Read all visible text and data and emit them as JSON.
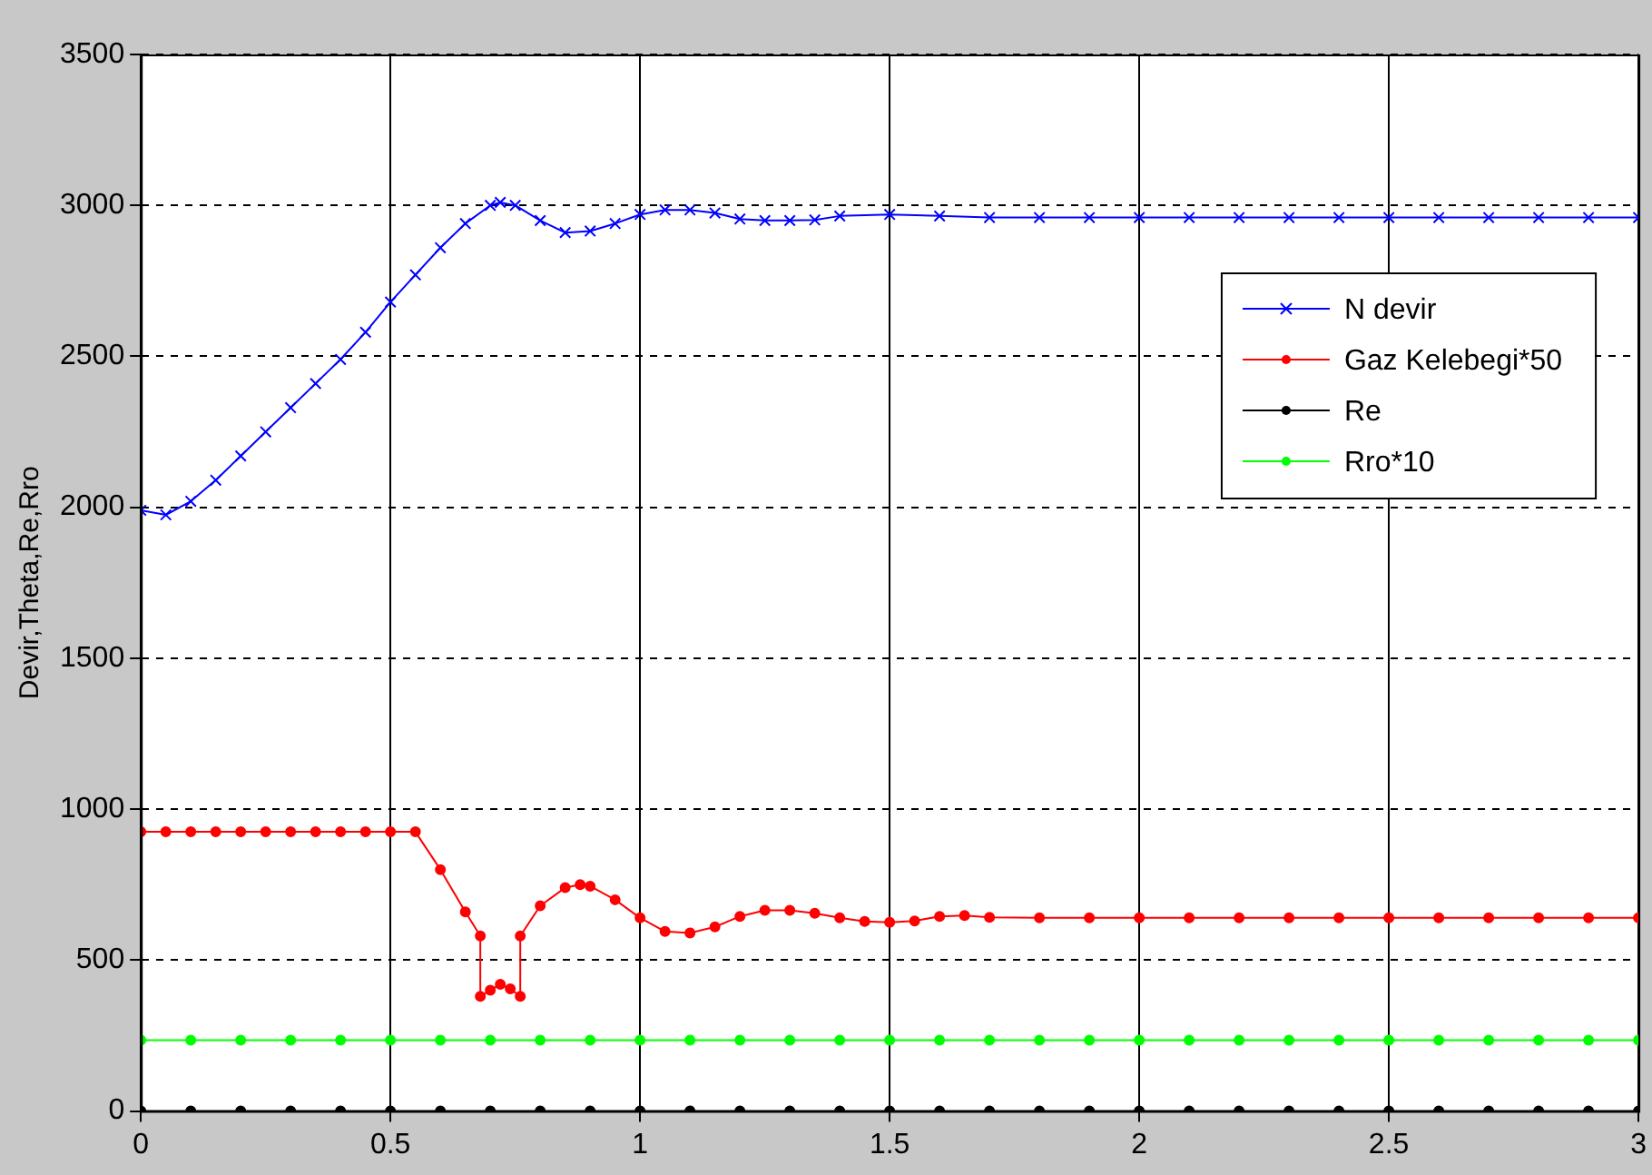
{
  "chart_data": {
    "type": "line",
    "ylabel": "Devir,Theta,Re,Rro",
    "xlim": [
      0,
      3
    ],
    "xticks": [
      0,
      0.5,
      1,
      1.5,
      2,
      2.5,
      3
    ],
    "ylim": [
      0,
      3500
    ],
    "yticks": [
      0,
      500,
      1000,
      1500,
      2000,
      2500,
      3000,
      3500
    ],
    "grid": true,
    "legend": "top right",
    "line_style": "solid",
    "series": [
      {
        "name": "N devir",
        "color": "#0000ff",
        "marker": "cross",
        "x": [
          0,
          0.05,
          0.1,
          0.15,
          0.2,
          0.25,
          0.3,
          0.35,
          0.4,
          0.45,
          0.5,
          0.55,
          0.6,
          0.65,
          0.7,
          0.72,
          0.75,
          0.8,
          0.85,
          0.9,
          0.95,
          1.0,
          1.05,
          1.1,
          1.15,
          1.2,
          1.25,
          1.3,
          1.35,
          1.4,
          1.5,
          1.6,
          1.7,
          1.8,
          1.9,
          2.0,
          2.1,
          2.2,
          2.3,
          2.4,
          2.5,
          2.6,
          2.7,
          2.8,
          2.9,
          3.0
        ],
        "values": [
          1990,
          1975,
          2020,
          2090,
          2170,
          2250,
          2330,
          2410,
          2490,
          2580,
          2680,
          2770,
          2860,
          2940,
          3000,
          3010,
          3000,
          2950,
          2910,
          2915,
          2940,
          2970,
          2985,
          2985,
          2975,
          2955,
          2950,
          2950,
          2952,
          2965,
          2970,
          2965,
          2960,
          2960,
          2960,
          2960,
          2960,
          2960,
          2960,
          2960,
          2960,
          2960,
          2960,
          2960,
          2960,
          2960
        ]
      },
      {
        "name": "Gaz Kelebegi*50",
        "color": "#ff0000",
        "marker": "circle",
        "x": [
          0,
          0.05,
          0.1,
          0.15,
          0.2,
          0.25,
          0.3,
          0.35,
          0.4,
          0.45,
          0.5,
          0.55,
          0.6,
          0.65,
          0.68,
          0.68,
          0.7,
          0.72,
          0.74,
          0.76,
          0.76,
          0.8,
          0.85,
          0.88,
          0.9,
          0.95,
          1.0,
          1.05,
          1.1,
          1.15,
          1.2,
          1.25,
          1.3,
          1.35,
          1.4,
          1.45,
          1.5,
          1.55,
          1.6,
          1.65,
          1.7,
          1.8,
          1.9,
          2.0,
          2.1,
          2.2,
          2.3,
          2.4,
          2.5,
          2.6,
          2.7,
          2.8,
          2.9,
          3.0
        ],
        "values": [
          925,
          925,
          925,
          925,
          925,
          925,
          925,
          925,
          925,
          925,
          925,
          925,
          800,
          660,
          580,
          380,
          400,
          420,
          405,
          380,
          580,
          680,
          740,
          750,
          745,
          700,
          640,
          595,
          590,
          610,
          645,
          665,
          665,
          655,
          640,
          628,
          625,
          630,
          645,
          648,
          642,
          640,
          640,
          640,
          640,
          640,
          640,
          640,
          640,
          640,
          640,
          640,
          640,
          640
        ]
      },
      {
        "name": "Re",
        "color": "#000000",
        "marker": "circle",
        "x": [
          0,
          0.1,
          0.2,
          0.3,
          0.4,
          0.5,
          0.6,
          0.7,
          0.8,
          0.9,
          1.0,
          1.1,
          1.2,
          1.3,
          1.4,
          1.5,
          1.6,
          1.7,
          1.8,
          1.9,
          2.0,
          2.1,
          2.2,
          2.3,
          2.4,
          2.5,
          2.6,
          2.7,
          2.8,
          2.9,
          3.0
        ],
        "values": [
          0,
          0,
          0,
          0,
          0,
          0,
          0,
          0,
          0,
          0,
          0,
          0,
          0,
          0,
          0,
          0,
          0,
          0,
          0,
          0,
          0,
          0,
          0,
          0,
          0,
          0,
          0,
          0,
          0,
          0,
          0
        ]
      },
      {
        "name": "Rro*10",
        "color": "#00ff00",
        "marker": "circle",
        "x": [
          0,
          0.1,
          0.2,
          0.3,
          0.4,
          0.5,
          0.6,
          0.7,
          0.8,
          0.9,
          1.0,
          1.1,
          1.2,
          1.3,
          1.4,
          1.5,
          1.6,
          1.7,
          1.8,
          1.9,
          2.0,
          2.1,
          2.2,
          2.3,
          2.4,
          2.5,
          2.6,
          2.7,
          2.8,
          2.9,
          3.0
        ],
        "values": [
          235,
          235,
          235,
          235,
          235,
          235,
          235,
          235,
          235,
          235,
          235,
          235,
          235,
          235,
          235,
          235,
          235,
          235,
          235,
          235,
          235,
          235,
          235,
          235,
          235,
          235,
          235,
          235,
          235,
          235,
          235
        ]
      }
    ]
  }
}
